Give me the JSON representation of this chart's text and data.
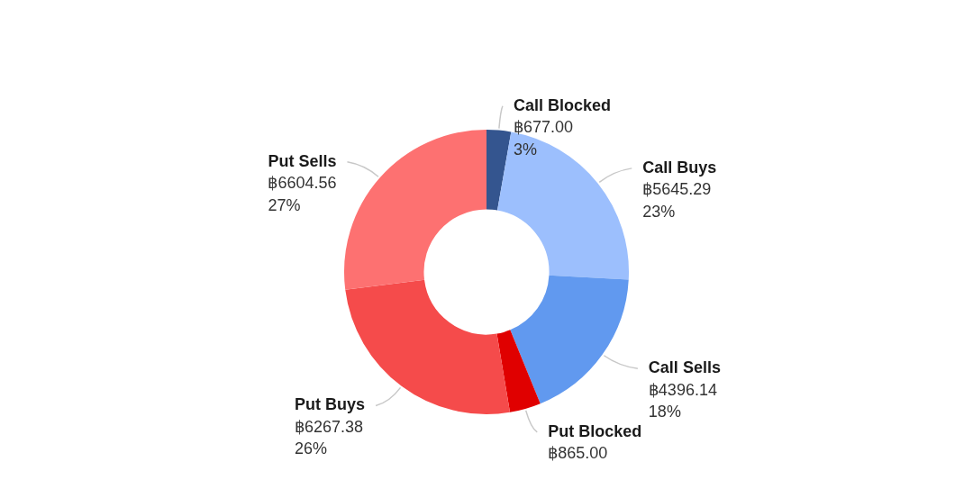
{
  "chart_data": {
    "type": "donut",
    "categories": [
      "Call Blocked",
      "Call Buys",
      "Call Sells",
      "Put Blocked",
      "Put Buys",
      "Put Sells"
    ],
    "values": [
      677.0,
      5645.29,
      4396.14,
      865.0,
      6267.38,
      6604.56
    ],
    "colors": [
      "#34558f",
      "#9cbffd",
      "#6199ef",
      "#e00000",
      "#f54b4b",
      "#fd7171"
    ],
    "value_labels": [
      "฿677.00\n3%",
      "฿5645.29\n23%",
      "฿4396.14\n18%",
      "฿865.00",
      "฿6267.38\n26%",
      "฿6604.56\n27%"
    ]
  }
}
